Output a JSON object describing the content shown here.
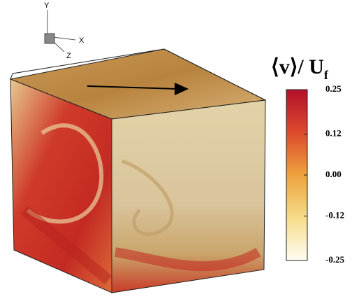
{
  "chart_data": {
    "type": "colorbar",
    "title": "⟨v⟩/ U",
    "title_subscript": "f",
    "axes": {
      "y": "Y",
      "x": "X",
      "z": "Z"
    },
    "clim": [
      -0.25,
      0.25
    ],
    "ticks": [
      0.25,
      0.12,
      {
        "value": 0,
        "label": "0.00"
      },
      -0.12,
      -0.25
    ],
    "colors": [
      "#fffdf4",
      "#f6dc8a",
      "#eda33e",
      "#dc4a2c",
      "#b3102c"
    ]
  }
}
